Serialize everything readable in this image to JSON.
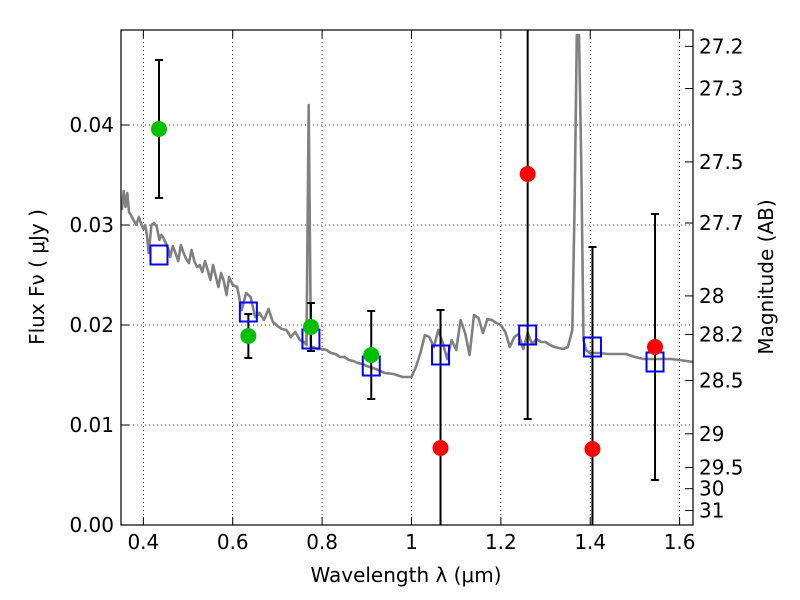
{
  "chart_data": {
    "type": "scatter",
    "xlabel": "Wavelength  λ (μm)",
    "ylabel": "Flux  Fν  ( μJy )",
    "y2label": "Magnitude (AB)",
    "xlim": [
      0.35,
      1.63
    ],
    "ylim": [
      0.0,
      0.0495
    ],
    "grid": "dotted",
    "x_ticks": [
      0.4,
      0.6,
      0.8,
      1.0,
      1.2,
      1.4,
      1.6
    ],
    "x_tick_labels": [
      "0.4",
      "0.6",
      "0.8",
      "1",
      "1.2",
      "1.4",
      "1.6"
    ],
    "y_ticks": [
      0.0,
      0.01,
      0.02,
      0.03,
      0.04
    ],
    "y_tick_labels": [
      "0.00",
      "0.01",
      "0.02",
      "0.03",
      "0.04"
    ],
    "mag_ticks": [
      27.2,
      27.3,
      27.5,
      27.7,
      28,
      28.2,
      28.5,
      29,
      29.5,
      30,
      31
    ],
    "mag_tick_labels": [
      "27.2",
      "27.3",
      "27.5",
      "27.7",
      "28",
      "28.2",
      "28.5",
      "29",
      "29.5",
      "30",
      "31"
    ],
    "series": [
      {
        "kind": "model_spectrum",
        "color": "#808080",
        "x": [
          0.352,
          0.356,
          0.36,
          0.364,
          0.368,
          0.372,
          0.378,
          0.384,
          0.39,
          0.396,
          0.4,
          0.404,
          0.408,
          0.412,
          0.418,
          0.424,
          0.43,
          0.436,
          0.44,
          0.444,
          0.45,
          0.456,
          0.46,
          0.466,
          0.472,
          0.478,
          0.484,
          0.49,
          0.496,
          0.502,
          0.508,
          0.514,
          0.52,
          0.526,
          0.532,
          0.538,
          0.544,
          0.55,
          0.556,
          0.562,
          0.568,
          0.574,
          0.58,
          0.586,
          0.592,
          0.6,
          0.61,
          0.62,
          0.63,
          0.64,
          0.65,
          0.66,
          0.67,
          0.68,
          0.69,
          0.7,
          0.71,
          0.72,
          0.73,
          0.74,
          0.75,
          0.76,
          0.765,
          0.77,
          0.775,
          0.78,
          0.79,
          0.8,
          0.81,
          0.82,
          0.83,
          0.84,
          0.85,
          0.86,
          0.87,
          0.88,
          0.89,
          0.9,
          0.92,
          0.94,
          0.96,
          0.98,
          1.0,
          1.01,
          1.02,
          1.03,
          1.04,
          1.05,
          1.06,
          1.07,
          1.08,
          1.09,
          1.1,
          1.11,
          1.12,
          1.13,
          1.14,
          1.15,
          1.16,
          1.17,
          1.18,
          1.19,
          1.2,
          1.21,
          1.22,
          1.23,
          1.24,
          1.25,
          1.26,
          1.27,
          1.28,
          1.29,
          1.3,
          1.31,
          1.32,
          1.33,
          1.34,
          1.35,
          1.36,
          1.365,
          1.37,
          1.375,
          1.38,
          1.385,
          1.39,
          1.4,
          1.42,
          1.44,
          1.46,
          1.48,
          1.5,
          1.52,
          1.54,
          1.56,
          1.58,
          1.6,
          1.63
        ],
        "y": [
          0.0315,
          0.0334,
          0.0318,
          0.0332,
          0.0313,
          0.031,
          0.0305,
          0.03,
          0.0308,
          0.03,
          0.0296,
          0.03,
          0.029,
          0.0272,
          0.03,
          0.0302,
          0.0298,
          0.0285,
          0.029,
          0.0288,
          0.0282,
          0.0276,
          0.0268,
          0.0279,
          0.0272,
          0.0264,
          0.028,
          0.0272,
          0.0266,
          0.0262,
          0.0275,
          0.0264,
          0.0258,
          0.026,
          0.0253,
          0.0264,
          0.0255,
          0.0245,
          0.026,
          0.0249,
          0.0238,
          0.0252,
          0.0244,
          0.023,
          0.0248,
          0.024,
          0.0238,
          0.0215,
          0.0232,
          0.0228,
          0.0208,
          0.0212,
          0.0205,
          0.0216,
          0.0203,
          0.0199,
          0.0196,
          0.0195,
          0.0188,
          0.0193,
          0.0185,
          0.0183,
          0.018,
          0.042,
          0.0178,
          0.0178,
          0.0176,
          0.0176,
          0.0175,
          0.0172,
          0.0171,
          0.0168,
          0.0168,
          0.0165,
          0.0164,
          0.0162,
          0.0161,
          0.0159,
          0.0156,
          0.0152,
          0.0151,
          0.0148,
          0.0148,
          0.0158,
          0.0172,
          0.019,
          0.0188,
          0.0178,
          0.0195,
          0.0182,
          0.0166,
          0.0185,
          0.0175,
          0.0205,
          0.0192,
          0.017,
          0.021,
          0.0207,
          0.0192,
          0.0206,
          0.0205,
          0.0202,
          0.02,
          0.0193,
          0.0178,
          0.0188,
          0.0191,
          0.0176,
          0.0192,
          0.0181,
          0.0186,
          0.0183,
          0.0183,
          0.018,
          0.0178,
          0.0177,
          0.0176,
          0.0178,
          0.0195,
          0.032,
          0.049,
          0.049,
          0.036,
          0.0185,
          0.0175,
          0.0172,
          0.0172,
          0.0171,
          0.0171,
          0.0171,
          0.0168,
          0.0166,
          0.0166,
          0.0166,
          0.0166,
          0.0165,
          0.0163
        ]
      },
      {
        "kind": "model_photometry",
        "color": "#0000ff",
        "marker": "open-square",
        "x": [
          0.435,
          0.635,
          0.775,
          0.91,
          1.065,
          1.26,
          1.405,
          1.545
        ],
        "y": [
          0.027,
          0.0213,
          0.0186,
          0.0159,
          0.017,
          0.019,
          0.0178,
          0.0163
        ]
      },
      {
        "kind": "detections",
        "color": "#00c000",
        "marker": "filled-circle",
        "x": [
          0.435,
          0.635,
          0.775,
          0.91
        ],
        "y": [
          0.0396,
          0.0189,
          0.0198,
          0.017
        ],
        "err": [
          0.0069,
          0.0022,
          0.0024,
          0.0044
        ]
      },
      {
        "kind": "upper_limits",
        "color": "#ff0000",
        "marker": "filled-circle",
        "x": [
          1.065,
          1.26,
          1.405,
          1.545
        ],
        "y": [
          0.0077,
          0.0351,
          0.0076,
          0.0178
        ],
        "err_low": [
          0.0077,
          0.0245,
          0.0076,
          0.0133
        ],
        "err_high": [
          0.0138,
          0.0495,
          0.0202,
          0.0133
        ]
      }
    ]
  }
}
